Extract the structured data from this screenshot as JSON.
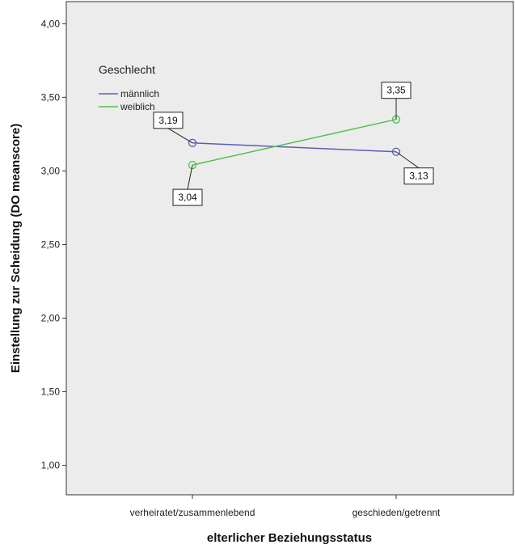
{
  "chart_data": {
    "type": "line",
    "categories": [
      "verheiratet/zusammenlebend",
      "geschieden/getrennt"
    ],
    "series": [
      {
        "name": "männlich",
        "values": [
          3.19,
          3.13
        ],
        "labels": [
          "3,19",
          "3,13"
        ],
        "color": "#5b5fb0"
      },
      {
        "name": "weiblich",
        "values": [
          3.04,
          3.35
        ],
        "labels": [
          "3,04",
          "3,35"
        ],
        "color": "#4cc14c"
      }
    ],
    "xlabel": "elterlicher Beziehungsstatus",
    "ylabel": "Einstellung zur Scheidung (DO meanscore)",
    "ylim": [
      0.8,
      4.15
    ],
    "yticks": [
      1.0,
      1.5,
      2.0,
      2.5,
      3.0,
      3.5,
      4.0
    ],
    "ytick_labels": [
      "1,00",
      "1,50",
      "2,00",
      "2,50",
      "3,00",
      "3,50",
      "4,00"
    ],
    "legend": {
      "title": "Geschlecht",
      "position": "top-left"
    },
    "plot_background": "#ececec",
    "grid": false
  }
}
